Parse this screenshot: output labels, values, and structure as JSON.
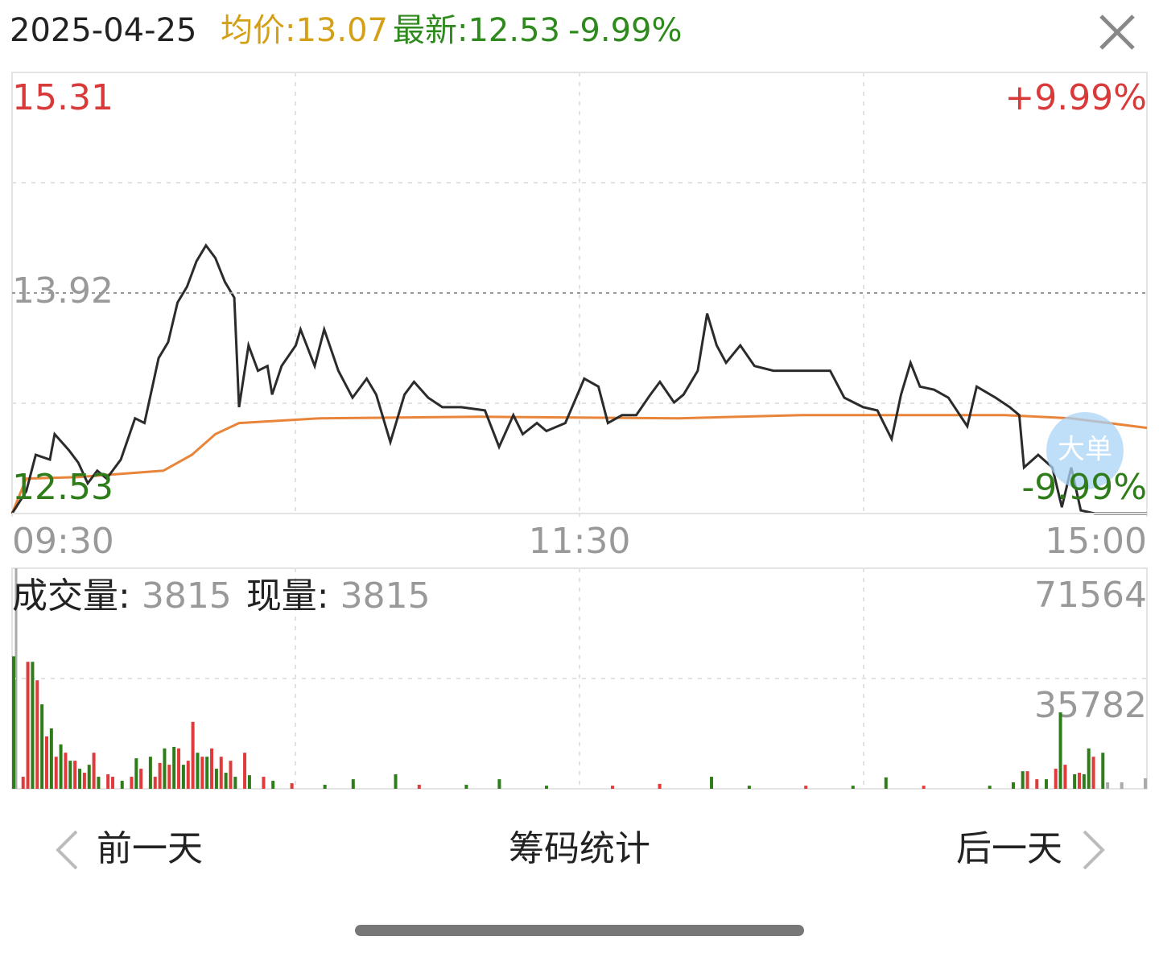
{
  "header": {
    "date": "2025-04-25",
    "avg": "均价:13.07",
    "latest": "最新:12.53",
    "change": "-9.99%"
  },
  "chart_data": [
    {
      "type": "line",
      "xlim": [
        0,
        240
      ],
      "ylim": [
        12.53,
        15.31
      ],
      "yticks": [
        15.31,
        13.92,
        12.53
      ],
      "xticks": [
        {
          "value": 0,
          "label": "09:30"
        },
        {
          "value": 120,
          "label": "11:30"
        },
        {
          "value": 240,
          "label": "15:00"
        }
      ],
      "pct_labels": [
        "+9.99%",
        "-9.99%"
      ],
      "series": [
        {
          "color": "#2b2b2b",
          "x": [
            0,
            3,
            5,
            8,
            9,
            12,
            14,
            16,
            18,
            20,
            23,
            26,
            28,
            31,
            33,
            35,
            37,
            39,
            41,
            43,
            45,
            47,
            48,
            50,
            52,
            54,
            55,
            57,
            60,
            61,
            64,
            66,
            69,
            72,
            75,
            77,
            80,
            83,
            85,
            88,
            91,
            95,
            100,
            103,
            106,
            108,
            111,
            113,
            117,
            121,
            124,
            126,
            129,
            132,
            135,
            137,
            140,
            142,
            145,
            147,
            149,
            151,
            154,
            157,
            161,
            166,
            173,
            176,
            180,
            183,
            186,
            188,
            190,
            192,
            195,
            198,
            202,
            204,
            208,
            211,
            213,
            214,
            217,
            220,
            222,
            224,
            226,
            229,
            240
          ],
          "values": [
            12.53,
            12.67,
            12.9,
            12.87,
            13.03,
            12.93,
            12.85,
            12.72,
            12.8,
            12.75,
            12.87,
            13.13,
            13.1,
            13.51,
            13.61,
            13.86,
            13.96,
            14.12,
            14.22,
            14.14,
            13.99,
            13.89,
            13.2,
            13.59,
            13.43,
            13.46,
            13.28,
            13.46,
            13.59,
            13.69,
            13.46,
            13.69,
            13.43,
            13.26,
            13.38,
            13.28,
            12.98,
            13.28,
            13.36,
            13.26,
            13.2,
            13.2,
            13.18,
            12.95,
            13.15,
            13.03,
            13.1,
            13.05,
            13.1,
            13.38,
            13.33,
            13.1,
            13.15,
            13.15,
            13.28,
            13.36,
            13.23,
            13.28,
            13.43,
            13.79,
            13.59,
            13.48,
            13.59,
            13.46,
            13.43,
            13.43,
            13.43,
            13.26,
            13.2,
            13.18,
            13.0,
            13.28,
            13.48,
            13.33,
            13.31,
            13.26,
            13.08,
            13.33,
            13.26,
            13.2,
            13.15,
            12.82,
            12.9,
            12.82,
            12.57,
            12.82,
            12.55,
            12.53,
            12.53
          ]
        },
        {
          "color": "#e8853a",
          "x": [
            0,
            3,
            14,
            32,
            38,
            43,
            48,
            65,
            99,
            141,
            167,
            210,
            224,
            240
          ],
          "values": [
            12.53,
            12.75,
            12.76,
            12.8,
            12.9,
            13.03,
            13.1,
            13.13,
            13.14,
            13.13,
            13.15,
            13.15,
            13.13,
            13.07
          ]
        }
      ]
    },
    {
      "type": "bar",
      "title": "成交量:",
      "title_value": 3815,
      "subtitle": "现量:",
      "subtitle_value": 3815,
      "xlim": [
        0,
        240
      ],
      "ylim": [
        0,
        71564
      ],
      "yticks": [
        35782,
        71564
      ],
      "x": [
        0,
        2,
        3,
        4,
        5,
        6,
        7,
        8,
        9,
        10,
        11,
        12,
        13,
        14,
        15,
        16,
        17,
        18,
        20,
        21,
        23,
        25,
        26,
        27,
        29,
        30,
        31,
        32,
        33,
        34,
        35,
        36,
        37,
        38,
        39,
        40,
        41,
        42,
        43,
        44,
        45,
        46,
        47,
        49,
        50,
        53,
        55,
        59,
        66,
        72,
        81,
        86,
        96,
        103,
        113,
        127,
        137,
        148,
        156,
        168,
        178,
        185,
        193,
        207,
        212,
        214,
        215,
        217,
        219,
        221,
        222,
        223,
        225,
        226,
        227,
        228,
        229,
        231,
        232,
        235,
        240
      ],
      "values": [
        43000,
        3900,
        41200,
        41200,
        35200,
        27400,
        17000,
        19600,
        10400,
        14400,
        11700,
        9100,
        9100,
        6500,
        5200,
        7800,
        11700,
        3900,
        4700,
        3900,
        2600,
        3900,
        9900,
        6500,
        10400,
        3900,
        8400,
        13100,
        7800,
        13600,
        13100,
        7800,
        9100,
        21700,
        11700,
        10400,
        10400,
        13100,
        6500,
        10400,
        5200,
        9100,
        3900,
        11700,
        4400,
        3900,
        2600,
        1800,
        1300,
        3100,
        4700,
        1300,
        1300,
        3100,
        1000,
        1000,
        1600,
        3900,
        1000,
        1000,
        1000,
        3700,
        1000,
        1000,
        2100,
        5700,
        5700,
        3100,
        3100,
        6500,
        24800,
        7800,
        4700,
        5200,
        4700,
        13100,
        10400,
        11700,
        2100,
        2100,
        3400
      ],
      "colors": [
        "#2f7d1a",
        "#e03a3a",
        "#e03a3a",
        "#2f7d1a",
        "#e03a3a",
        "#2f7d1a",
        "#e03a3a",
        "#2f7d1a",
        "#e03a3a",
        "#2f7d1a",
        "#e03a3a",
        "#2f7d1a",
        "#e03a3a",
        "#2f7d1a",
        "#e03a3a",
        "#2f7d1a",
        "#e03a3a",
        "#2f7d1a",
        "#e03a3a",
        "#e03a3a",
        "#2f7d1a",
        "#e03a3a",
        "#2f7d1a",
        "#e03a3a",
        "#2f7d1a",
        "#e03a3a",
        "#e03a3a",
        "#2f7d1a",
        "#e03a3a",
        "#2f7d1a",
        "#e03a3a",
        "#2f7d1a",
        "#e03a3a",
        "#e03a3a",
        "#2f7d1a",
        "#e03a3a",
        "#2f7d1a",
        "#e03a3a",
        "#2f7d1a",
        "#e03a3a",
        "#2f7d1a",
        "#e03a3a",
        "#2f7d1a",
        "#e03a3a",
        "#2f7d1a",
        "#e03a3a",
        "#2f7d1a",
        "#e03a3a",
        "#2f7d1a",
        "#2f7d1a",
        "#2f7d1a",
        "#e03a3a",
        "#2f7d1a",
        "#2f7d1a",
        "#2f7d1a",
        "#e03a3a",
        "#e03a3a",
        "#2f7d1a",
        "#2f7d1a",
        "#e03a3a",
        "#2f7d1a",
        "#2f7d1a",
        "#e03a3a",
        "#2f7d1a",
        "#2f7d1a",
        "#2f7d1a",
        "#e03a3a",
        "#e03a3a",
        "#2f7d1a",
        "#e03a3a",
        "#2f7d1a",
        "#e03a3a",
        "#2f7d1a",
        "#e03a3a",
        "#2f7d1a",
        "#2f7d1a",
        "#e03a3a",
        "#2f7d1a",
        "#aaaaaa",
        "#aaaaaa",
        "#aaaaaa"
      ]
    }
  ],
  "controls": {
    "big_order": "大单",
    "prev": "前一天",
    "chips": "筹码统计",
    "next": "后一天"
  }
}
